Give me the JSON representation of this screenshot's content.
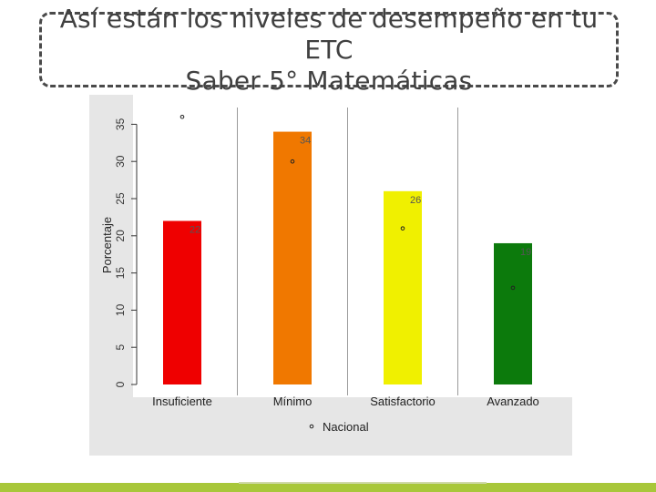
{
  "title": {
    "line1": "Así están los niveles de desempeño en tu ETC",
    "line2": "Saber 5° Matemáticas"
  },
  "chart_data": {
    "type": "bar",
    "categories": [
      "Insuficiente",
      "Mínimo",
      "Satisfactorio",
      "Avanzado"
    ],
    "series": [
      {
        "values": [
          22,
          34,
          26,
          19
        ],
        "colors": [
          "#ef0000",
          "#f07800",
          "#f0f000",
          "#0c7a0c"
        ]
      },
      {
        "name": "Nacional",
        "values": [
          36,
          30,
          21,
          13
        ],
        "marker": "circle"
      }
    ],
    "data_labels": [
      "22",
      "34",
      "26",
      "19"
    ],
    "ylabel": "Porcentaje",
    "xlabel": "",
    "ylim": [
      0,
      37
    ],
    "yticks": [
      0,
      5,
      10,
      15,
      20,
      25,
      30,
      35
    ],
    "grid": "vertical separators",
    "legend": "bottom-center",
    "legend_label": "Nacional"
  }
}
